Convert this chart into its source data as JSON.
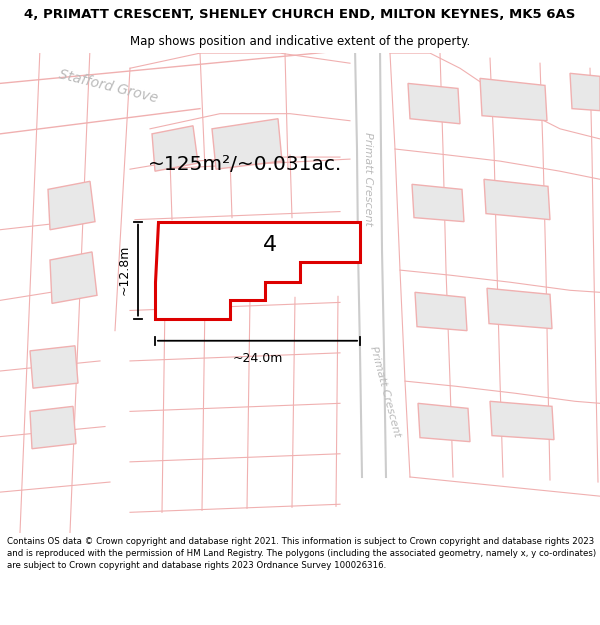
{
  "title_line1": "4, PRIMATT CRESCENT, SHENLEY CHURCH END, MILTON KEYNES, MK5 6AS",
  "title_line2": "Map shows position and indicative extent of the property.",
  "footer_text": "Contains OS data © Crown copyright and database right 2021. This information is subject to Crown copyright and database rights 2023 and is reproduced with the permission of HM Land Registry. The polygons (including the associated geometry, namely x, y co-ordinates) are subject to Crown copyright and database rights 2023 Ordnance Survey 100026316.",
  "bg_color": "#ffffff",
  "map_bg": "#ffffff",
  "area_label": "~125m²/~0.031ac.",
  "plot_number": "4",
  "dim_width": "~24.0m",
  "dim_height": "~12.8m",
  "road_label_1": "Stafford Grove",
  "road_label_2a": "Primatt Crescent",
  "road_label_2b": "Primatt Crescent",
  "light_red": "#f5b8b8",
  "plot_red": "#dd0000",
  "building_fill": "#e8e8e8",
  "building_edge": "#f0b0b0",
  "road_line": "#f0b0b0",
  "road_text": "#b0b0b0"
}
